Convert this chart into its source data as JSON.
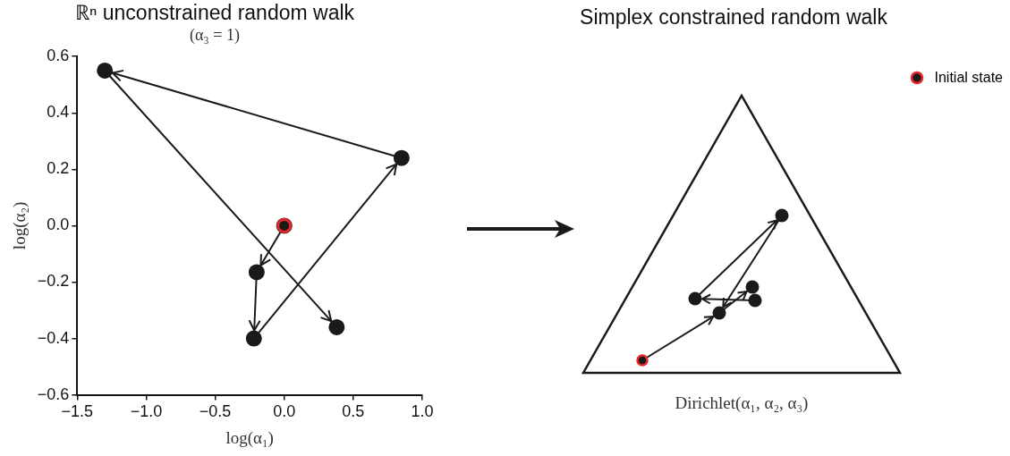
{
  "chart_data": [
    {
      "type": "scatter",
      "title": "ℝⁿ unconstrained random walk",
      "subtitle": "(α₃ = 1)",
      "xlabel": "log(α₁)",
      "ylabel": "log(α₂)",
      "xlim": [
        -1.5,
        1.0
      ],
      "ylim": [
        -0.6,
        0.6
      ],
      "xticks": [
        {
          "value": -1.5,
          "label": "−1.5"
        },
        {
          "value": -1.0,
          "label": "−1.0"
        },
        {
          "value": -0.5,
          "label": "−0.5"
        },
        {
          "value": 0,
          "label": "0.0"
        },
        {
          "value": 0.5,
          "label": "0.5"
        },
        {
          "value": 1.0,
          "label": "1.0"
        }
      ],
      "yticks": [
        {
          "value": -0.6,
          "label": "−0.6"
        },
        {
          "value": -0.4,
          "label": "−0.4"
        },
        {
          "value": -0.2,
          "label": "−0.2"
        },
        {
          "value": 0,
          "label": "0.0"
        },
        {
          "value": 0.2,
          "label": "0.2"
        },
        {
          "value": 0.4,
          "label": "0.4"
        },
        {
          "value": 0.6,
          "label": "0.6"
        }
      ],
      "grid": false,
      "legend": "top right",
      "marker": "circle",
      "series": [
        {
          "type": "line",
          "color": "#1a1a1a",
          "x": [
            0,
            -0.2,
            -0.22,
            0.85,
            -1.3,
            0.38
          ],
          "values": [
            0,
            -0.165,
            -0.4,
            0.24,
            0.55,
            -0.36
          ]
        },
        {
          "type": "scatter",
          "name": "Initial state",
          "color": "#e8262b",
          "x": [
            0
          ],
          "values": [
            0
          ]
        }
      ]
    },
    {
      "type": "other",
      "title": "Simplex constrained random walk",
      "xlabel": "Dirichlet(α₁, α₂, α₃)"
    }
  ]
}
